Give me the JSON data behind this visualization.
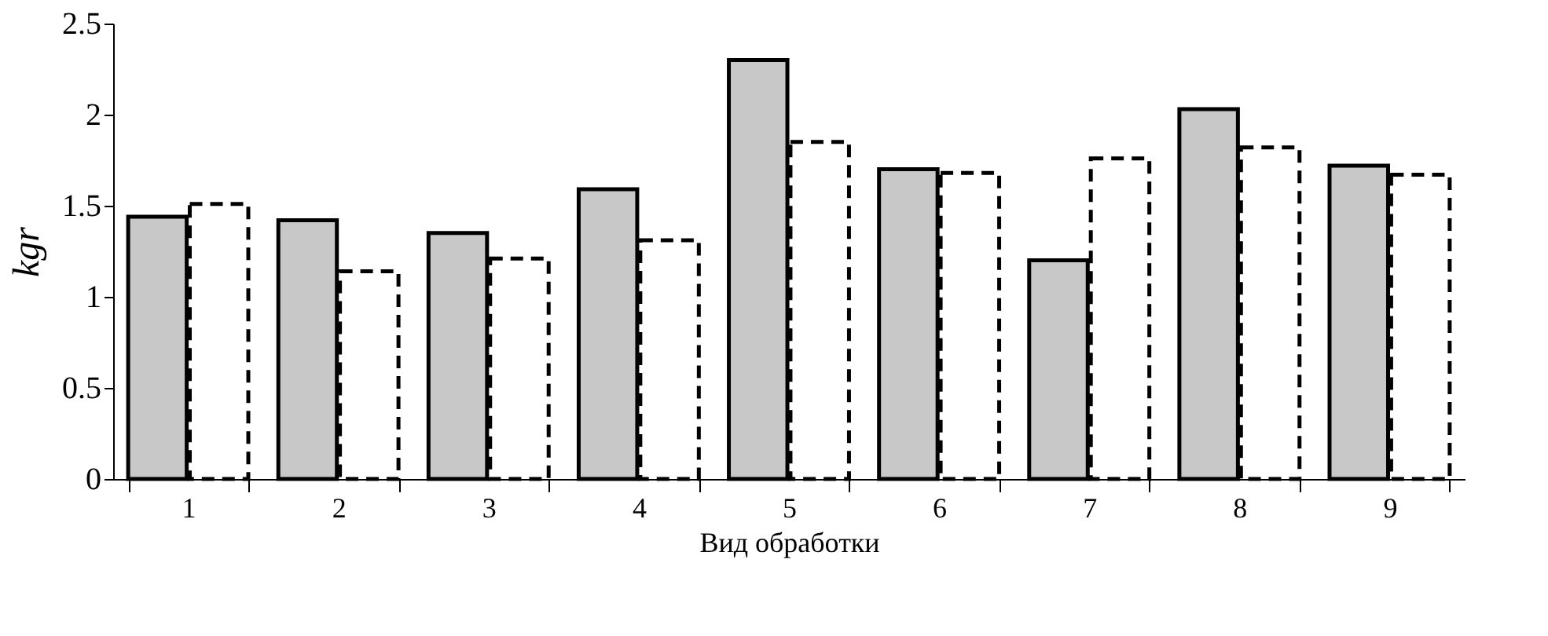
{
  "chart_data": {
    "type": "bar",
    "xlabel": "Вид обработки",
    "ylabel": "kgr",
    "categories": [
      "1",
      "2",
      "3",
      "4",
      "5",
      "6",
      "7",
      "8",
      "9"
    ],
    "series": [
      {
        "color": "#c8c8c8",
        "line_style": "solid",
        "values": [
          1.44,
          1.42,
          1.35,
          1.59,
          2.3,
          1.7,
          1.2,
          2.03,
          1.72
        ]
      },
      {
        "color": "#ffffff",
        "line_style": "dashed",
        "values": [
          1.51,
          1.14,
          1.21,
          1.31,
          1.85,
          1.68,
          1.76,
          1.82,
          1.67
        ]
      }
    ],
    "ylim": [
      0,
      2.5
    ],
    "yticks": [
      0,
      0.5,
      1,
      1.5,
      2,
      2.5
    ],
    "grid": false,
    "legend": false
  }
}
